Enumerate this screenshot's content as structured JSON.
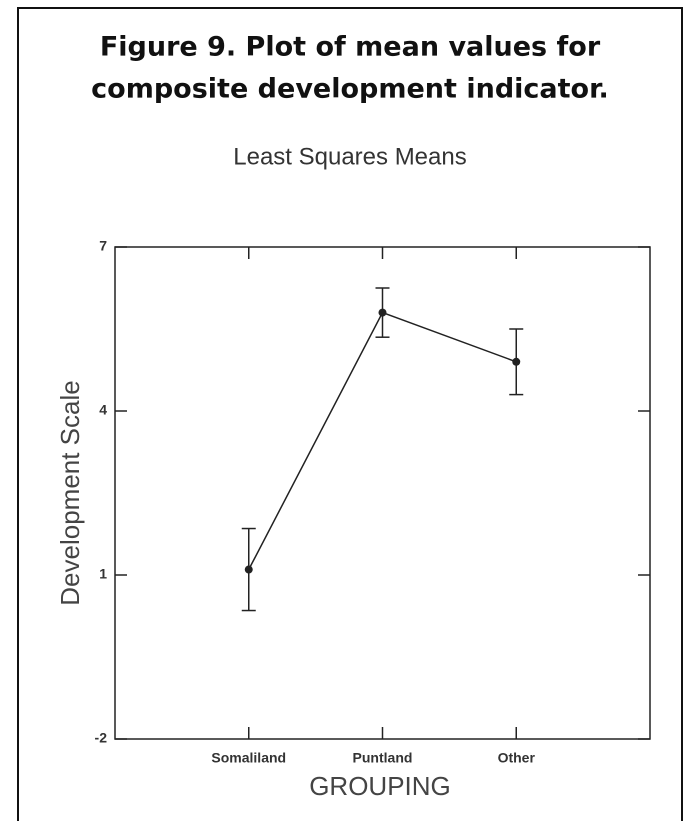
{
  "chart_data": {
    "type": "line",
    "title": [
      "Figure 9.  Plot of mean values for",
      "composite development indicator."
    ],
    "subtitle": "Least Squares Means",
    "x_label": "GROUPING",
    "y_label": "Development Scale",
    "categories": [
      "Somaliland",
      "Puntland",
      "Other"
    ],
    "series": [
      {
        "name": "Least Squares Means",
        "color": "#222222",
        "values": [
          1.1,
          5.8,
          4.9
        ],
        "errors": [
          0.75,
          0.45,
          0.6
        ]
      }
    ],
    "ylim": [
      -2,
      7
    ],
    "yticks": [
      -2,
      1,
      4,
      7
    ]
  }
}
